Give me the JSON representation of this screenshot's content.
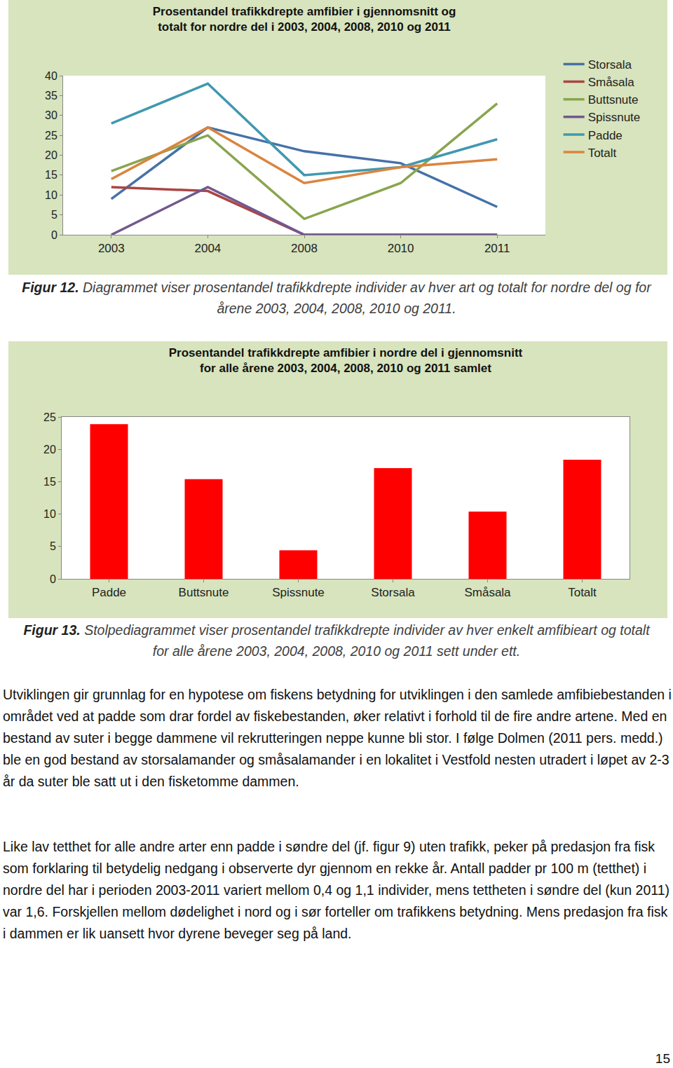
{
  "chart_data": [
    {
      "type": "line",
      "title": "Prosentandel trafikkdrepte amfibier i gjennomsnitt og\ntotalt for nordre del i 2003, 2004, 2008, 2010 og 2011",
      "categories": [
        "2003",
        "2004",
        "2008",
        "2010",
        "2011"
      ],
      "series": [
        {
          "name": "Storsala",
          "color": "#4572a7",
          "values": [
            9,
            27,
            21,
            18,
            7
          ]
        },
        {
          "name": "Småsala",
          "color": "#aa4643",
          "values": [
            12,
            11,
            0,
            0,
            0
          ]
        },
        {
          "name": "Buttsnute",
          "color": "#89a54e",
          "values": [
            16,
            25,
            4,
            13,
            33
          ]
        },
        {
          "name": "Spissnute",
          "color": "#71588f",
          "values": [
            0,
            12,
            0,
            0,
            0
          ]
        },
        {
          "name": "Padde",
          "color": "#4198af",
          "values": [
            28,
            38,
            15,
            17,
            24
          ]
        },
        {
          "name": "Totalt",
          "color": "#db843d",
          "values": [
            14,
            27,
            13,
            17,
            19
          ]
        }
      ],
      "ylim": [
        0,
        40
      ],
      "yticks": [
        0,
        5,
        10,
        15,
        20,
        25,
        30,
        35,
        40
      ],
      "grid": false,
      "legend": "right"
    },
    {
      "type": "bar",
      "title": "Prosentandel trafikkdrepte amfibier i nordre del i gjennomsnitt\nfor alle årene 2003, 2004, 2008, 2010 og 2011 samlet",
      "categories": [
        "Padde",
        "Buttsnute",
        "Spissnute",
        "Storsala",
        "Småsala",
        "Totalt"
      ],
      "values": [
        23.9,
        15.4,
        4.4,
        17.1,
        10.4,
        18.4
      ],
      "color": "#ff0000",
      "ylim": [
        0,
        25
      ],
      "yticks": [
        0,
        5,
        10,
        15,
        20,
        25
      ],
      "grid": false
    }
  ],
  "document": {
    "captions": [
      {
        "label": "Figur 12.",
        "text": "Diagrammet viser prosentandel trafikkdrepte individer av hver art og totalt for nordre del og for årene 2003, 2004, 2008, 2010 og 2011."
      },
      {
        "label": "Figur 13.",
        "text": "Stolpediagrammet viser prosentandel trafikkdrepte individer av hver enkelt amfibieart og totalt for alle årene 2003, 2004, 2008, 2010 og 2011 sett under ett."
      }
    ],
    "paragraphs": [
      "Utviklingen gir grunnlag for en hypotese om fiskens betydning for utviklingen i den samlede amfibiebestanden i området ved at padde som drar fordel av fiskebestanden, øker relativt i forhold til de fire andre artene. Med en bestand av suter i begge dammene vil rekrutteringen neppe kunne bli stor. I følge Dolmen (2011 pers. medd.) ble en god bestand av storsalamander og småsalamander i en lokalitet i Vestfold nesten utradert i løpet av 2-3 år da suter ble satt ut i den fisketomme dammen.",
      "Like lav tetthet for alle andre arter enn padde i søndre del (jf. figur 9) uten trafikk, peker på predasjon fra fisk som forklaring til betydelig nedgang i observerte dyr gjennom en rekke år. Antall padder pr 100 m (tetthet) i nordre del har i perioden 2003-2011 variert mellom 0,4 og 1,1 individer, mens tettheten i søndre del (kun 2011) var 1,6. Forskjellen mellom dødelighet i nord og i sør forteller om trafikkens betydning. Mens predasjon fra fisk i dammen er lik uansett hvor dyrene beveger seg på land."
    ],
    "page_number": 15
  }
}
